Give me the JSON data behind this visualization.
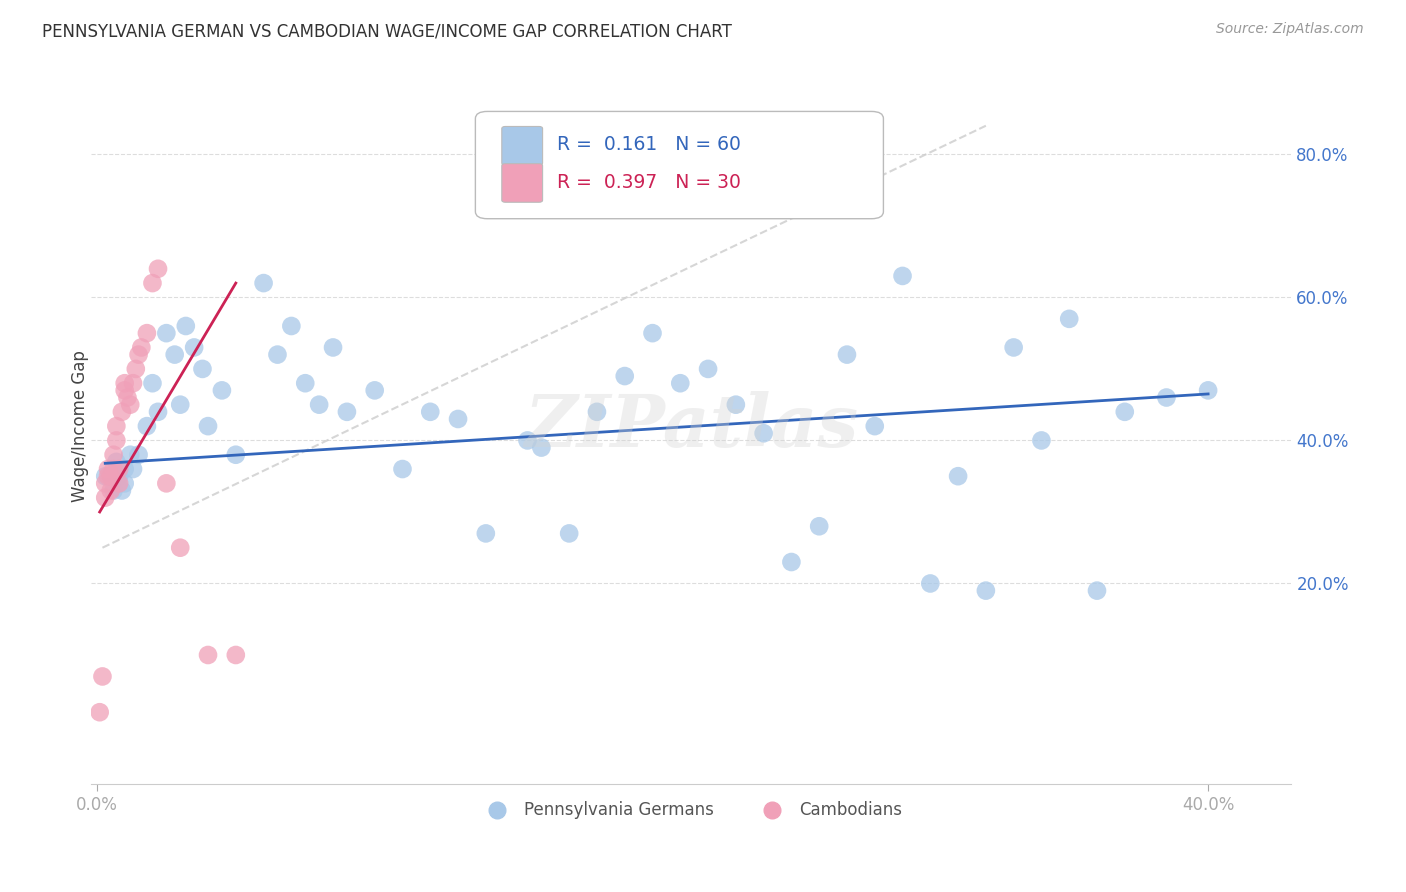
{
  "title": "PENNSYLVANIA GERMAN VS CAMBODIAN WAGE/INCOME GAP CORRELATION CHART",
  "source_text": "Source: ZipAtlas.com",
  "ylabel": "Wage/Income Gap",
  "xmin": -0.002,
  "xmax": 0.43,
  "ymin": -0.08,
  "ymax": 0.92,
  "xticks": [
    0.0,
    0.4
  ],
  "xticklabels": [
    "0.0%",
    "40.0%"
  ],
  "yticks_right": [
    0.2,
    0.4,
    0.6,
    0.8
  ],
  "yticklabels_right": [
    "20.0%",
    "40.0%",
    "60.0%",
    "80.0%"
  ],
  "blue_color": "#A8C8E8",
  "pink_color": "#F0A0B8",
  "trend_blue": "#3366BB",
  "trend_pink": "#CC2255",
  "ref_line_color": "#CCCCCC",
  "legend_R_blue": "0.161",
  "legend_N_blue": "60",
  "legend_R_pink": "0.397",
  "legend_N_pink": "30",
  "legend_label_blue": "Pennsylvania Germans",
  "legend_label_pink": "Cambodians",
  "watermark": "ZIPatlas",
  "grid_color": "#DDDDDD",
  "bg_color": "#FFFFFF",
  "blue_scatter_x": [
    0.003,
    0.005,
    0.006,
    0.007,
    0.008,
    0.009,
    0.01,
    0.01,
    0.012,
    0.013,
    0.015,
    0.018,
    0.02,
    0.022,
    0.025,
    0.028,
    0.03,
    0.032,
    0.035,
    0.038,
    0.04,
    0.045,
    0.05,
    0.06,
    0.065,
    0.07,
    0.075,
    0.08,
    0.085,
    0.09,
    0.1,
    0.11,
    0.12,
    0.13,
    0.14,
    0.155,
    0.16,
    0.17,
    0.18,
    0.19,
    0.2,
    0.21,
    0.22,
    0.23,
    0.24,
    0.25,
    0.26,
    0.27,
    0.28,
    0.29,
    0.3,
    0.31,
    0.32,
    0.33,
    0.34,
    0.35,
    0.36,
    0.37,
    0.385,
    0.4
  ],
  "blue_scatter_y": [
    0.35,
    0.35,
    0.33,
    0.37,
    0.35,
    0.33,
    0.36,
    0.34,
    0.38,
    0.36,
    0.38,
    0.42,
    0.48,
    0.44,
    0.55,
    0.52,
    0.45,
    0.56,
    0.53,
    0.5,
    0.42,
    0.47,
    0.38,
    0.62,
    0.52,
    0.56,
    0.48,
    0.45,
    0.53,
    0.44,
    0.47,
    0.36,
    0.44,
    0.43,
    0.27,
    0.4,
    0.39,
    0.27,
    0.44,
    0.49,
    0.55,
    0.48,
    0.5,
    0.45,
    0.41,
    0.23,
    0.28,
    0.52,
    0.42,
    0.63,
    0.2,
    0.35,
    0.19,
    0.53,
    0.4,
    0.57,
    0.19,
    0.44,
    0.46,
    0.47
  ],
  "pink_scatter_x": [
    0.001,
    0.002,
    0.003,
    0.003,
    0.004,
    0.004,
    0.005,
    0.005,
    0.006,
    0.006,
    0.007,
    0.007,
    0.008,
    0.008,
    0.009,
    0.01,
    0.01,
    0.011,
    0.012,
    0.013,
    0.014,
    0.015,
    0.016,
    0.018,
    0.02,
    0.022,
    0.025,
    0.03,
    0.04,
    0.05
  ],
  "pink_scatter_y": [
    0.02,
    0.07,
    0.32,
    0.34,
    0.35,
    0.36,
    0.33,
    0.35,
    0.36,
    0.38,
    0.4,
    0.42,
    0.34,
    0.36,
    0.44,
    0.47,
    0.48,
    0.46,
    0.45,
    0.48,
    0.5,
    0.52,
    0.53,
    0.55,
    0.62,
    0.64,
    0.34,
    0.25,
    0.1,
    0.1
  ],
  "ref_line_x": [
    0.002,
    0.32
  ],
  "ref_line_y": [
    0.25,
    0.84
  ],
  "blue_trend_x": [
    0.003,
    0.4
  ],
  "blue_trend_y": [
    0.368,
    0.465
  ],
  "pink_trend_x": [
    0.001,
    0.05
  ],
  "pink_trend_y": [
    0.3,
    0.62
  ]
}
